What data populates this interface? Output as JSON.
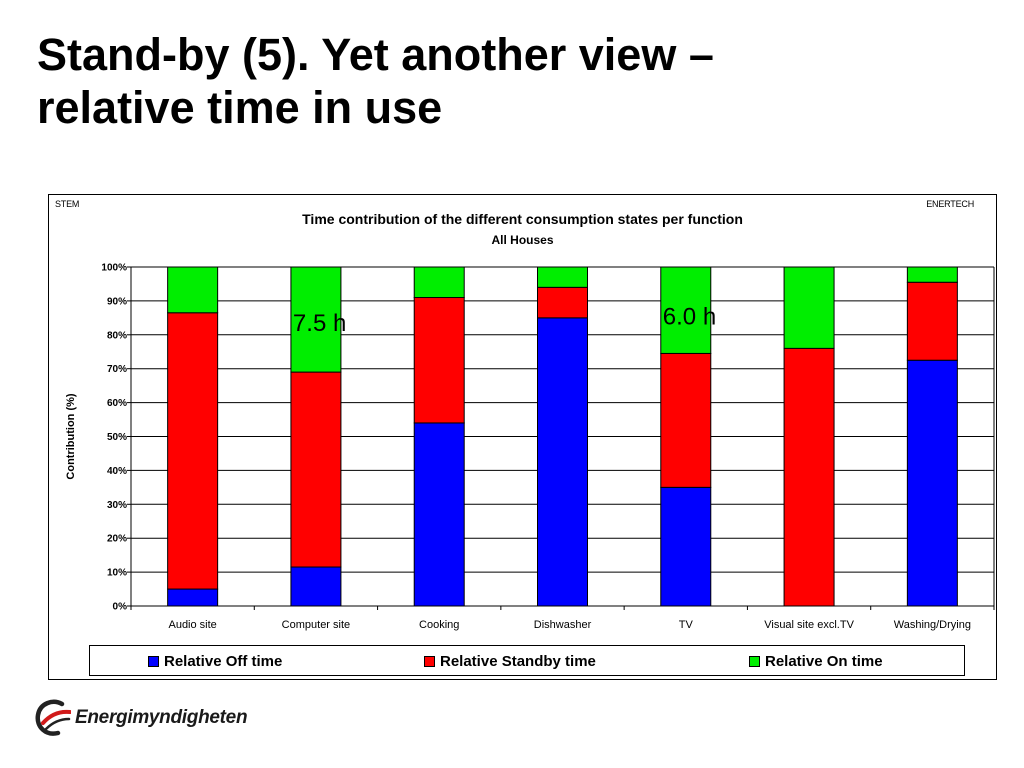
{
  "slide": {
    "title_line1": "Stand-by (5). Yet another view –",
    "title_line2": "relative time in use"
  },
  "chart_header": {
    "left_label": "STEM",
    "right_label": "ENERTECH"
  },
  "chart_data": {
    "type": "bar",
    "stacked": true,
    "title": "Time contribution of the different consumption states per function",
    "subtitle": "All Houses",
    "xlabel": "",
    "ylabel": "Contribution (%)",
    "ylim": [
      0,
      100
    ],
    "yticks": [
      "0%",
      "10%",
      "20%",
      "30%",
      "40%",
      "50%",
      "60%",
      "70%",
      "80%",
      "90%",
      "100%"
    ],
    "grid": true,
    "legend_position": "bottom",
    "categories": [
      "Audio site",
      "Computer site",
      "Cooking",
      "Dishwasher",
      "TV",
      "Visual site excl.TV",
      "Washing/Drying"
    ],
    "series": [
      {
        "name": "Relative Off time",
        "color": "#0000ff",
        "values": [
          5,
          11.5,
          54,
          85,
          35,
          0,
          72.5
        ]
      },
      {
        "name": "Relative Standby time",
        "color": "#ff0000",
        "values": [
          81.5,
          57.5,
          37,
          9,
          39.5,
          76,
          23
        ]
      },
      {
        "name": "Relative On time",
        "color": "#00ee00",
        "values": [
          13.5,
          31,
          9,
          6,
          25.5,
          24,
          4.5
        ]
      }
    ],
    "annotations": [
      {
        "category": "Computer site",
        "text_value": "7.5",
        "text_unit": "h",
        "y": 84
      },
      {
        "category": "TV",
        "text_value": "6.0",
        "text_unit": "h",
        "y": 86
      }
    ]
  },
  "logo": {
    "text": "Energimyndigheten"
  }
}
